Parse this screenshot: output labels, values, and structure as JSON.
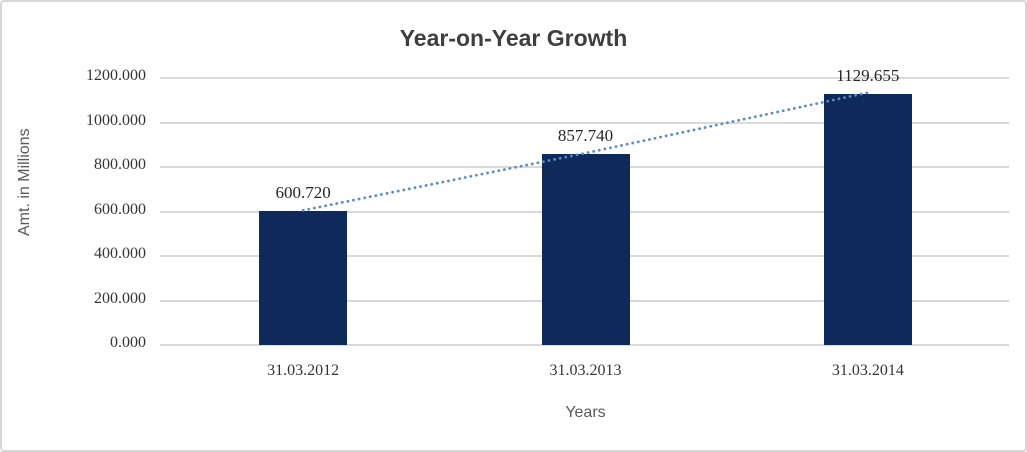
{
  "chart_data": {
    "type": "bar",
    "title": "Year-on-Year Growth",
    "xlabel": "Years",
    "ylabel": "Amt. in Millions",
    "categories": [
      "31.03.2012",
      "31.03.2013",
      "31.03.2014"
    ],
    "values": [
      600.72,
      857.74,
      1129.655
    ],
    "data_labels": [
      "600.720",
      "857.740",
      "1129.655"
    ],
    "y_ticks": [
      "0.000",
      "200.000",
      "400.000",
      "600.000",
      "800.000",
      "1000.000",
      "1200.000"
    ],
    "ylim": [
      0,
      1200
    ],
    "grid": "horizontal-only",
    "legend": "none",
    "trendline": {
      "type": "linear",
      "style": "dotted",
      "color": "#5b8ac6"
    },
    "colors": {
      "bar": "#0d2a5a",
      "gridline": "#d9d9d9",
      "title": "#3f3f3f",
      "axis_title": "#595959",
      "tick_label": "#343434",
      "frame_border": "#d6d6d6",
      "background": "#ffffff"
    }
  }
}
